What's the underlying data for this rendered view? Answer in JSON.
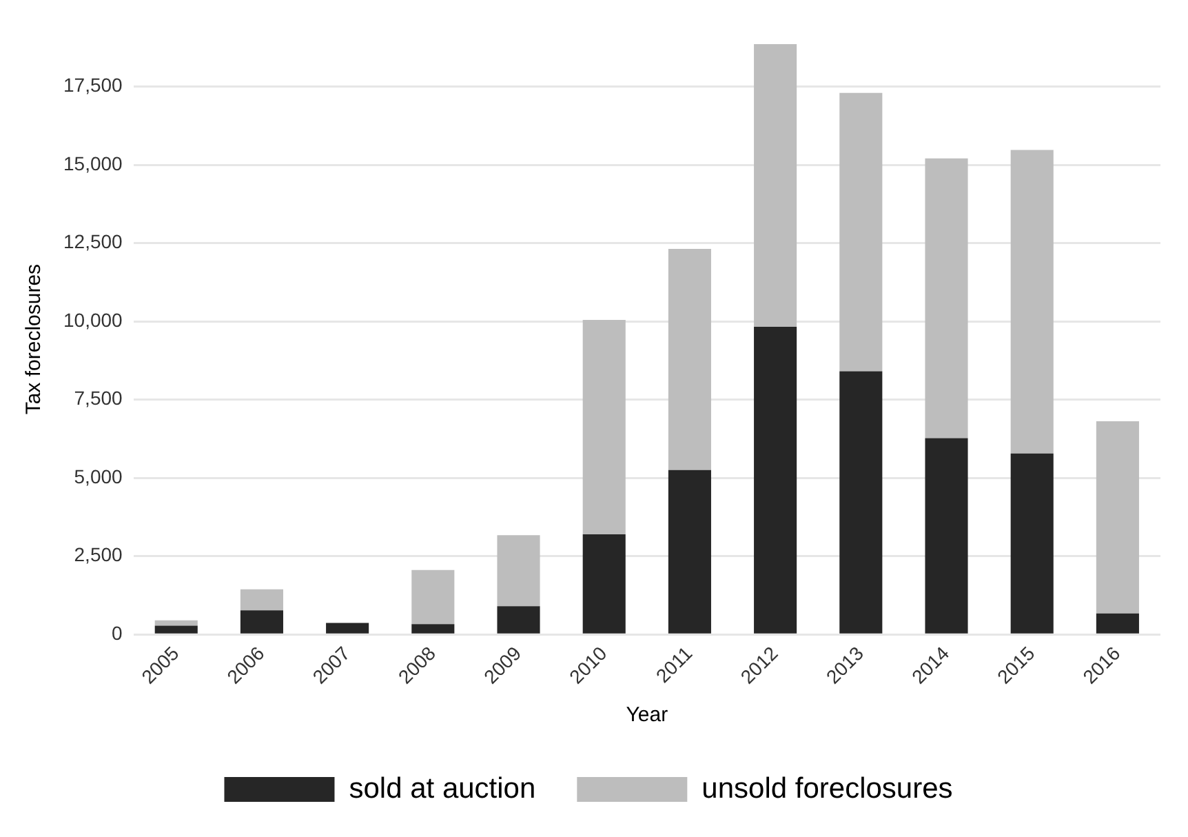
{
  "chart_data": {
    "type": "bar",
    "xlabel": "Year",
    "ylabel": "Tax foreclosures",
    "categories": [
      "2005",
      "2006",
      "2007",
      "2008",
      "2009",
      "2010",
      "2011",
      "2012",
      "2013",
      "2014",
      "2015",
      "2016"
    ],
    "series": [
      {
        "name": "sold at auction",
        "color": "#262626",
        "values": [
          280,
          770,
          370,
          330,
          900,
          3200,
          5250,
          9830,
          8410,
          6270,
          5780,
          670
        ]
      },
      {
        "name": "unsold foreclosures",
        "color": "#bdbdbd",
        "values": [
          170,
          670,
          0,
          1730,
          2270,
          6850,
          7070,
          9030,
          8890,
          8940,
          9700,
          6140
        ]
      }
    ],
    "stacked": true,
    "ylim": [
      0,
      18860
    ],
    "yticks": [
      0,
      {
        "value": 2500,
        "label": "2,500"
      },
      {
        "value": 5000,
        "label": "5,000"
      },
      {
        "value": 7500,
        "label": "7,500"
      },
      {
        "value": 10000,
        "label": "10,000"
      },
      {
        "value": 12500,
        "label": "12,500"
      },
      {
        "value": 15000,
        "label": "15,000"
      },
      {
        "value": 17500,
        "label": "17,500"
      }
    ],
    "grid": "y",
    "legend": "bottom"
  }
}
